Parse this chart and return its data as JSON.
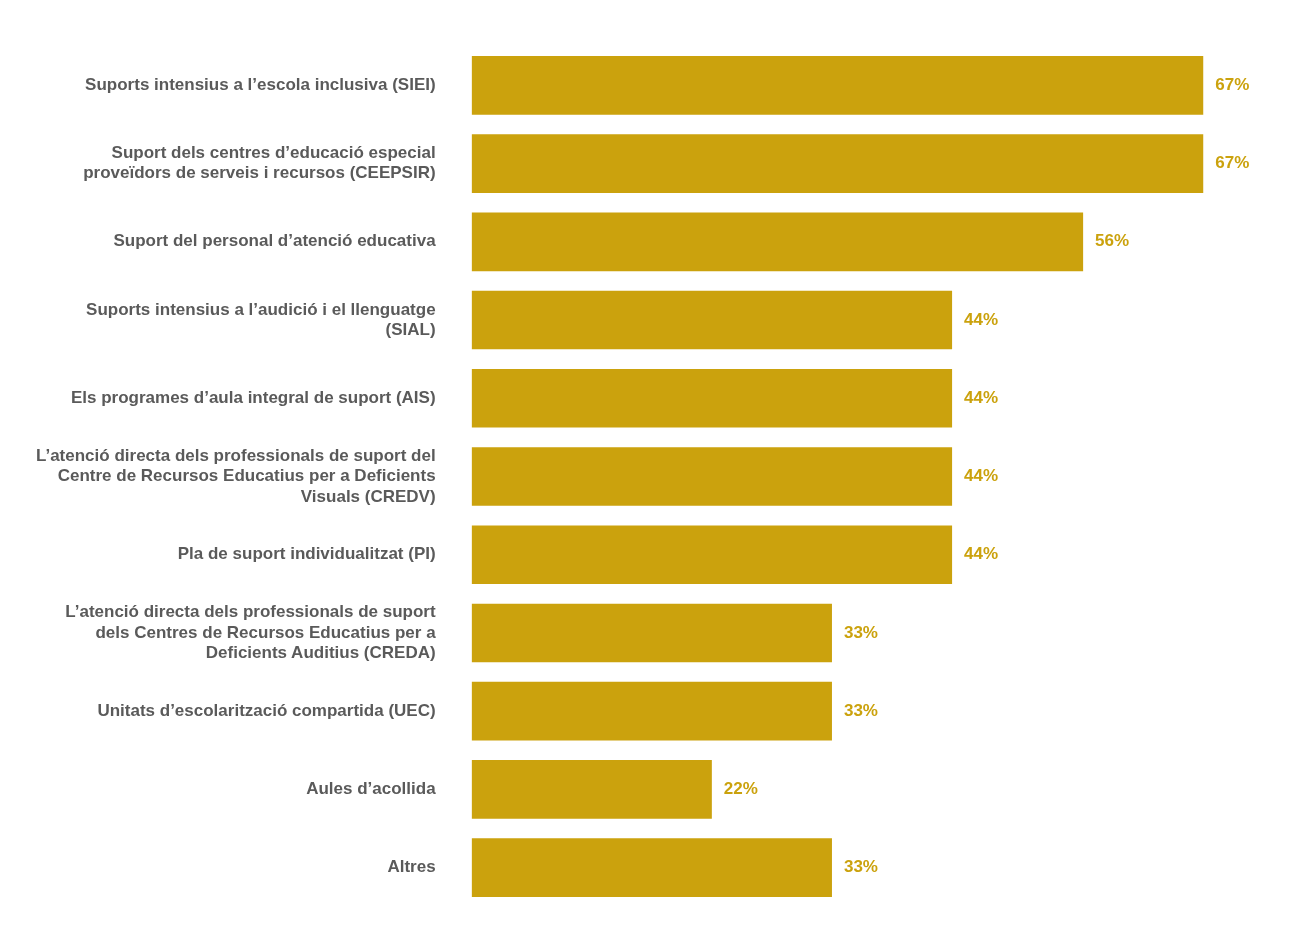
{
  "chart_data": {
    "type": "bar",
    "orientation": "horizontal",
    "categories": [
      "Suports intensius a l’escola inclusiva (SIEI)",
      "Suport dels centres d’educació especial proveïdors de serveis i recursos (CEEPSIR)",
      "Suport del personal d’atenció educativa",
      "Suports intensius a l’audició i el llenguatge (SIAL)",
      "Els programes d’aula integral de suport (AIS)",
      "L’atenció directa dels professionals de suport del Centre de Recursos Educatius per a Deficients Visuals (CREDV)",
      "Pla de suport individualitzat (PI)",
      "L’atenció directa dels professionals de suport dels Centres de Recursos Educatius per a Deficients Auditius (CREDA)",
      "Unitats d’escolarització compartida (UEC)",
      "Aules d’acollida",
      "Altres"
    ],
    "values": [
      67,
      67,
      56,
      44,
      44,
      44,
      44,
      33,
      33,
      22,
      33
    ],
    "value_labels": [
      "67%",
      "67%",
      "56%",
      "44%",
      "44%",
      "44%",
      "44%",
      "33%",
      "33%",
      "22%",
      "33%"
    ],
    "color": "#cba20d"
  }
}
